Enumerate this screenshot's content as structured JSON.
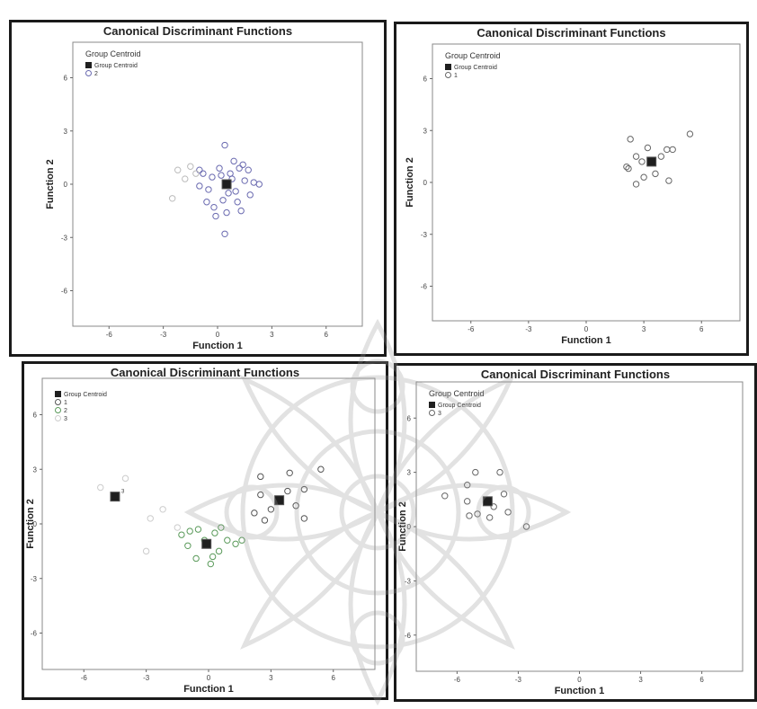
{
  "chart_data": [
    {
      "type": "scatter",
      "title": "Canonical Discriminant Functions",
      "xlabel": "Function 1",
      "ylabel": "Function 2",
      "xlim": [
        -8,
        8
      ],
      "ylim": [
        -8,
        8
      ],
      "xticks": [
        "-6",
        "-3",
        "0",
        "3",
        "6"
      ],
      "yticks": [
        "6",
        "3",
        "0",
        "-3",
        "-6"
      ],
      "legend": {
        "title": "Group Centroid",
        "entries": [
          "Group Centroid",
          "2"
        ],
        "placement": "top-left"
      },
      "centroids": [
        {
          "label": "",
          "x": 0.5,
          "y": 0.0
        }
      ],
      "series": [
        {
          "name": "2",
          "color": "#6a6ab0",
          "points": [
            [
              0.2,
              0.5
            ],
            [
              0.8,
              0.3
            ],
            [
              1.2,
              0.9
            ],
            [
              -0.3,
              0.4
            ],
            [
              0.6,
              -0.5
            ],
            [
              1.5,
              0.2
            ],
            [
              -0.5,
              -0.3
            ],
            [
              0.3,
              -0.9
            ],
            [
              1.0,
              -0.4
            ],
            [
              2.0,
              0.1
            ],
            [
              1.8,
              -0.6
            ],
            [
              -0.8,
              0.6
            ],
            [
              0.9,
              1.3
            ],
            [
              1.4,
              1.1
            ],
            [
              -0.2,
              -1.3
            ],
            [
              0.5,
              -1.6
            ],
            [
              1.3,
              -1.5
            ],
            [
              0.4,
              2.2
            ],
            [
              -0.6,
              -1.0
            ],
            [
              0.1,
              0.9
            ],
            [
              2.3,
              0.0
            ],
            [
              1.7,
              0.8
            ],
            [
              -1.0,
              -0.1
            ],
            [
              0.7,
              0.6
            ],
            [
              1.1,
              -1.0
            ],
            [
              0.4,
              -2.8
            ],
            [
              -0.1,
              -1.8
            ],
            [
              -1.0,
              0.8
            ]
          ]
        },
        {
          "name": "",
          "color": "#bbbbbb",
          "points": [
            [
              -2.2,
              0.8
            ],
            [
              -1.5,
              1.0
            ],
            [
              -1.2,
              0.6
            ],
            [
              -2.5,
              -0.8
            ],
            [
              -1.8,
              0.3
            ]
          ]
        }
      ]
    },
    {
      "type": "scatter",
      "title": "Canonical Discriminant Functions",
      "xlabel": "Function 1",
      "ylabel": "Function 2",
      "xlim": [
        -8,
        8
      ],
      "ylim": [
        -8,
        8
      ],
      "xticks": [
        "-6",
        "-3",
        "0",
        "3",
        "6"
      ],
      "yticks": [
        "6",
        "3",
        "0",
        "-3",
        "-6"
      ],
      "legend": {
        "title": "Group Centroid",
        "entries": [
          "Group Centroid",
          "1"
        ],
        "placement": "top-left"
      },
      "centroids": [
        {
          "label": "",
          "x": 3.4,
          "y": 1.2
        }
      ],
      "series": [
        {
          "name": "1",
          "color": "#666666",
          "points": [
            [
              2.3,
              2.5
            ],
            [
              2.6,
              1.5
            ],
            [
              2.2,
              0.8
            ],
            [
              2.9,
              1.2
            ],
            [
              3.0,
              0.3
            ],
            [
              3.6,
              0.5
            ],
            [
              3.9,
              1.5
            ],
            [
              4.2,
              1.9
            ],
            [
              4.5,
              1.9
            ],
            [
              5.4,
              2.8
            ],
            [
              4.3,
              0.1
            ],
            [
              2.6,
              -0.1
            ],
            [
              2.1,
              0.9
            ],
            [
              3.2,
              2.0
            ]
          ]
        }
      ]
    },
    {
      "type": "scatter",
      "title": "Canonical Discriminant Functions",
      "xlabel": "Function 1",
      "ylabel": "Function 2",
      "xlim": [
        -8,
        8
      ],
      "ylim": [
        -8,
        8
      ],
      "xticks": [
        "-6",
        "-3",
        "0",
        "3",
        "6"
      ],
      "yticks": [
        "6",
        "3",
        "0",
        "-3",
        "-6"
      ],
      "legend": {
        "title": "",
        "entries": [
          "Group Centroid",
          "1",
          "2",
          "3"
        ],
        "placement": "top-left"
      },
      "centroids": [
        {
          "label": "3",
          "x": -4.5,
          "y": 1.5
        },
        {
          "label": "",
          "x": 3.4,
          "y": 1.3
        },
        {
          "label": "",
          "x": -0.1,
          "y": -1.1
        }
      ],
      "series": [
        {
          "name": "1",
          "color": "#555555",
          "points": [
            [
              2.5,
              2.6
            ],
            [
              2.5,
              1.6
            ],
            [
              3.0,
              0.8
            ],
            [
              3.8,
              1.8
            ],
            [
              4.2,
              1.0
            ],
            [
              4.6,
              1.9
            ],
            [
              5.4,
              3.0
            ],
            [
              4.6,
              0.3
            ],
            [
              2.2,
              0.6
            ],
            [
              2.7,
              0.2
            ],
            [
              3.9,
              2.8
            ]
          ]
        },
        {
          "name": "2",
          "color": "#5a9a5a",
          "points": [
            [
              -0.5,
              -0.3
            ],
            [
              0.3,
              -0.5
            ],
            [
              -1.0,
              -1.2
            ],
            [
              -0.6,
              -1.9
            ],
            [
              0.5,
              -1.5
            ],
            [
              0.9,
              -0.9
            ],
            [
              -1.3,
              -0.6
            ],
            [
              0.1,
              -2.2
            ],
            [
              1.3,
              -1.1
            ],
            [
              -0.2,
              -0.9
            ],
            [
              0.6,
              -0.2
            ],
            [
              -0.9,
              -0.4
            ],
            [
              0.2,
              -1.8
            ],
            [
              1.6,
              -0.9
            ]
          ]
        },
        {
          "name": "3",
          "color": "#cccccc",
          "points": [
            [
              -4.0,
              2.5
            ],
            [
              -2.2,
              0.8
            ],
            [
              -2.8,
              0.3
            ],
            [
              -3.0,
              -1.5
            ],
            [
              -5.2,
              2.0
            ],
            [
              -1.5,
              -0.2
            ]
          ]
        }
      ]
    },
    {
      "type": "scatter",
      "title": "Canonical Discriminant Functions",
      "xlabel": "Function 1",
      "ylabel": "Function 2",
      "xlim": [
        -8,
        8
      ],
      "ylim": [
        -8,
        8
      ],
      "xticks": [
        "-6",
        "-3",
        "0",
        "3",
        "6"
      ],
      "yticks": [
        "6",
        "3",
        "0",
        "-3",
        "-6"
      ],
      "legend": {
        "title": "Group Centroid",
        "entries": [
          "Group Centroid",
          "3"
        ],
        "placement": "top-left"
      },
      "centroids": [
        {
          "label": "",
          "x": -4.5,
          "y": 1.4
        }
      ],
      "series": [
        {
          "name": "3",
          "color": "#666666",
          "points": [
            [
              -5.1,
              3.0
            ],
            [
              -3.9,
              3.0
            ],
            [
              -5.5,
              2.3
            ],
            [
              -6.6,
              1.7
            ],
            [
              -5.5,
              1.4
            ],
            [
              -3.7,
              1.8
            ],
            [
              -4.2,
              1.1
            ],
            [
              -5.4,
              0.6
            ],
            [
              -4.4,
              0.5
            ],
            [
              -3.5,
              0.8
            ],
            [
              -2.6,
              0.0
            ],
            [
              -5.0,
              0.7
            ]
          ]
        }
      ]
    }
  ]
}
